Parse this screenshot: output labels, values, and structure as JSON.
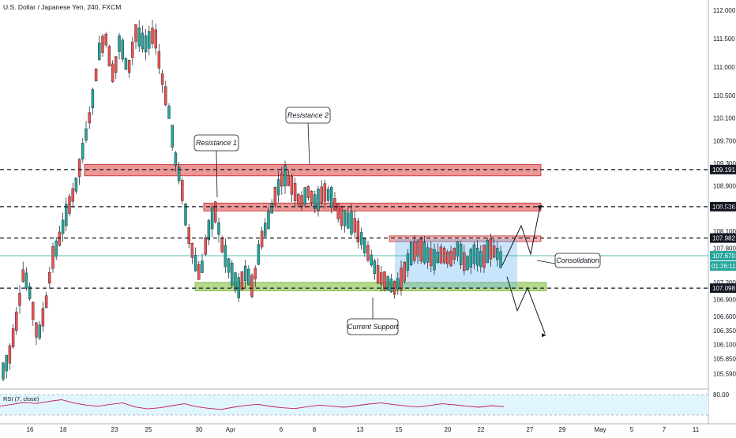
{
  "chart_data": {
    "type": "candlestick",
    "title": "U.S. Dollar / Japanese Yen, 240, FXCM",
    "ylim": [
      105.4,
      112.1
    ],
    "y_ticks": [
      {
        "v": 112.0,
        "label": "112.000"
      },
      {
        "v": 111.5,
        "label": "111.500"
      },
      {
        "v": 111.0,
        "label": "111.000"
      },
      {
        "v": 110.5,
        "label": "110.500"
      },
      {
        "v": 110.1,
        "label": "110.100"
      },
      {
        "v": 109.7,
        "label": "109.700"
      },
      {
        "v": 109.3,
        "label": "109.300"
      },
      {
        "v": 108.9,
        "label": "108.900"
      },
      {
        "v": 108.5,
        "label": "108.500"
      },
      {
        "v": 108.1,
        "label": "108.100"
      },
      {
        "v": 107.8,
        "label": "107.800"
      },
      {
        "v": 107.2,
        "label": "107.200"
      },
      {
        "v": 106.9,
        "label": "106.900"
      },
      {
        "v": 106.6,
        "label": "106.600"
      },
      {
        "v": 106.35,
        "label": "106.350"
      },
      {
        "v": 106.1,
        "label": "106.100"
      },
      {
        "v": 105.85,
        "label": "105.850"
      },
      {
        "v": 105.59,
        "label": "105.590"
      }
    ],
    "x_ticks": [
      "16",
      "18",
      "23",
      "25",
      "30",
      "Apr",
      "6",
      "8",
      "13",
      "15",
      "20",
      "22",
      "27",
      "29",
      "May",
      "5",
      "7",
      "11"
    ],
    "levels": [
      {
        "value": 109.191,
        "label": "109.191",
        "tag_color": "#131722"
      },
      {
        "value": 108.536,
        "label": "108.536",
        "tag_color": "#131722"
      },
      {
        "value": 107.982,
        "label": "107.982",
        "tag_color": "#131722"
      },
      {
        "value": 107.098,
        "label": "107.098",
        "tag_color": "#131722"
      }
    ],
    "current_price": {
      "value": 107.67,
      "label": "107.670",
      "countdown": "01:26:11",
      "color": "#26a69a"
    },
    "zones": [
      {
        "name": "resistance-zone-upper",
        "y_top": 109.28,
        "y_bottom": 109.08,
        "x_from": "18",
        "color": "#e57373"
      },
      {
        "name": "resistance-zone-lower",
        "y_top": 108.6,
        "y_bottom": 108.46,
        "x_from": "29",
        "color": "#e57373"
      },
      {
        "name": "consolidation-top-zone",
        "y_top": 108.02,
        "y_bottom": 107.92,
        "x_from": "14",
        "color": "#ef9a9a"
      },
      {
        "name": "support-zone",
        "y_top": 107.2,
        "y_bottom": 107.05,
        "x_from": "29",
        "color": "#9ccc65"
      }
    ],
    "annotations": [
      "Resistance 1",
      "Resistance 2",
      "Consolidation",
      "Current Support"
    ],
    "rsi": {
      "label": "RSI (7, close)",
      "upper": "80.00",
      "values": [
        48,
        55,
        62,
        58,
        66,
        72,
        60,
        52,
        48,
        55,
        60,
        45,
        38,
        42,
        50,
        57,
        46,
        40,
        36,
        44,
        51,
        55,
        47,
        42,
        39,
        46,
        52,
        48,
        44,
        50,
        56,
        60,
        54,
        49,
        45,
        51,
        57,
        53,
        48,
        44,
        50,
        46
      ]
    },
    "colors": {
      "up": "#26a69a",
      "down": "#ef5350",
      "wick": "#131722",
      "grid": "#e0e3eb",
      "rsi_line": "#c2185b",
      "rsi_band": "#e1f5fe"
    }
  }
}
